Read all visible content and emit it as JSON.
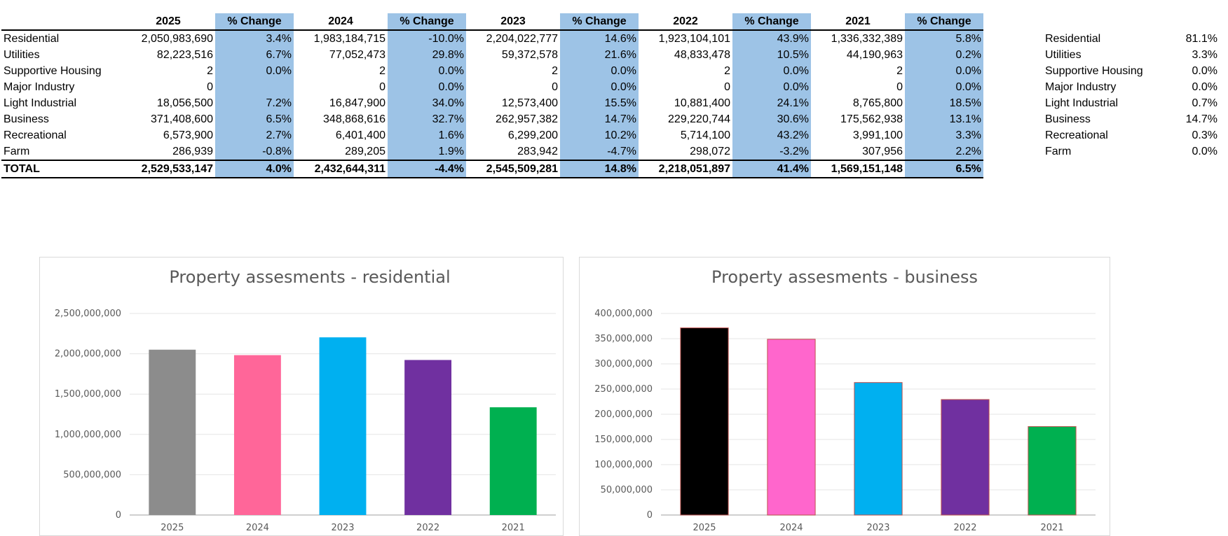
{
  "table": {
    "years": [
      "2025",
      "2024",
      "2023",
      "2022",
      "2021"
    ],
    "change_header": "% Change",
    "rows": [
      {
        "label": "Residential",
        "cells": [
          [
            "2,050,983,690",
            "3.4%"
          ],
          [
            "1,983,184,715",
            "-10.0%"
          ],
          [
            "2,204,022,777",
            "14.6%"
          ],
          [
            "1,923,104,101",
            "43.9%"
          ],
          [
            "1,336,332,389",
            "5.8%"
          ]
        ]
      },
      {
        "label": "Utilities",
        "cells": [
          [
            "82,223,516",
            "6.7%"
          ],
          [
            "77,052,473",
            "29.8%"
          ],
          [
            "59,372,578",
            "21.6%"
          ],
          [
            "48,833,478",
            "10.5%"
          ],
          [
            "44,190,963",
            "0.2%"
          ]
        ]
      },
      {
        "label": "Supportive Housing",
        "cells": [
          [
            "2",
            "0.0%"
          ],
          [
            "2",
            "0.0%"
          ],
          [
            "2",
            "0.0%"
          ],
          [
            "2",
            "0.0%"
          ],
          [
            "2",
            "0.0%"
          ]
        ]
      },
      {
        "label": "Major Industry",
        "cells": [
          [
            "0",
            ""
          ],
          [
            "0",
            "0.0%"
          ],
          [
            "0",
            "0.0%"
          ],
          [
            "0",
            "0.0%"
          ],
          [
            "0",
            "0.0%"
          ]
        ]
      },
      {
        "label": "Light Industrial",
        "cells": [
          [
            "18,056,500",
            "7.2%"
          ],
          [
            "16,847,900",
            "34.0%"
          ],
          [
            "12,573,400",
            "15.5%"
          ],
          [
            "10,881,400",
            "24.1%"
          ],
          [
            "8,765,800",
            "18.5%"
          ]
        ]
      },
      {
        "label": "Business",
        "cells": [
          [
            "371,408,600",
            "6.5%"
          ],
          [
            "348,868,616",
            "32.7%"
          ],
          [
            "262,957,382",
            "14.7%"
          ],
          [
            "229,220,744",
            "30.6%"
          ],
          [
            "175,562,938",
            "13.1%"
          ]
        ]
      },
      {
        "label": "Recreational",
        "cells": [
          [
            "6,573,900",
            "2.7%"
          ],
          [
            "6,401,400",
            "1.6%"
          ],
          [
            "6,299,200",
            "10.2%"
          ],
          [
            "5,714,100",
            "43.2%"
          ],
          [
            "3,991,100",
            "3.3%"
          ]
        ]
      },
      {
        "label": "Farm",
        "cells": [
          [
            "286,939",
            "-0.8%"
          ],
          [
            "289,205",
            "1.9%"
          ],
          [
            "283,942",
            "-4.7%"
          ],
          [
            "298,072",
            "-3.2%"
          ],
          [
            "307,956",
            "2.2%"
          ]
        ]
      }
    ],
    "total": {
      "label": "TOTAL",
      "cells": [
        [
          "2,529,533,147",
          "4.0%"
        ],
        [
          "2,432,644,311",
          "-4.4%"
        ],
        [
          "2,545,509,281",
          "14.8%"
        ],
        [
          "2,218,051,897",
          "41.4%"
        ],
        [
          "1,569,151,148",
          "6.5%"
        ]
      ]
    }
  },
  "share_table": [
    {
      "label": "Residential",
      "value": "81.1%"
    },
    {
      "label": "Utilities",
      "value": "3.3%"
    },
    {
      "label": "Supportive Housing",
      "value": "0.0%"
    },
    {
      "label": "Major Industry",
      "value": "0.0%"
    },
    {
      "label": "Light Industrial",
      "value": "0.7%"
    },
    {
      "label": "Business",
      "value": "14.7%"
    },
    {
      "label": "Recreational",
      "value": "0.3%"
    },
    {
      "label": "Farm",
      "value": "0.0%"
    }
  ],
  "chart_data": [
    {
      "type": "bar",
      "title": "Property assesments - residential",
      "categories": [
        "2025",
        "2024",
        "2023",
        "2022",
        "2021"
      ],
      "values": [
        2050983690,
        1983184715,
        2204022777,
        1923104101,
        1336332389
      ],
      "colors": [
        "#8c8c8c",
        "#ff6699",
        "#00b0f0",
        "#7030a0",
        "#00b050"
      ],
      "ylim": [
        0,
        2500000000
      ],
      "yticks": [
        0,
        500000000,
        1000000000,
        1500000000,
        2000000000,
        2500000000
      ],
      "ytick_labels": [
        "0",
        "500,000,000",
        "1,000,000,000",
        "1,500,000,000",
        "2,000,000,000",
        "2,500,000,000"
      ],
      "grid": true
    },
    {
      "type": "bar",
      "title": "Property assesments - business",
      "categories": [
        "2025",
        "2024",
        "2023",
        "2022",
        "2021"
      ],
      "values": [
        371408600,
        348868616,
        262957382,
        229220744,
        175562938
      ],
      "colors": [
        "#000000",
        "#ff66cc",
        "#00b0f0",
        "#7030a0",
        "#00b050"
      ],
      "ylim": [
        0,
        400000000
      ],
      "yticks": [
        0,
        50000000,
        100000000,
        150000000,
        200000000,
        250000000,
        300000000,
        350000000,
        400000000
      ],
      "ytick_labels": [
        "0",
        "50,000,000",
        "100,000,000",
        "150,000,000",
        "200,000,000",
        "250,000,000",
        "300,000,000",
        "350,000,000",
        "400,000,000"
      ],
      "grid": true
    }
  ]
}
